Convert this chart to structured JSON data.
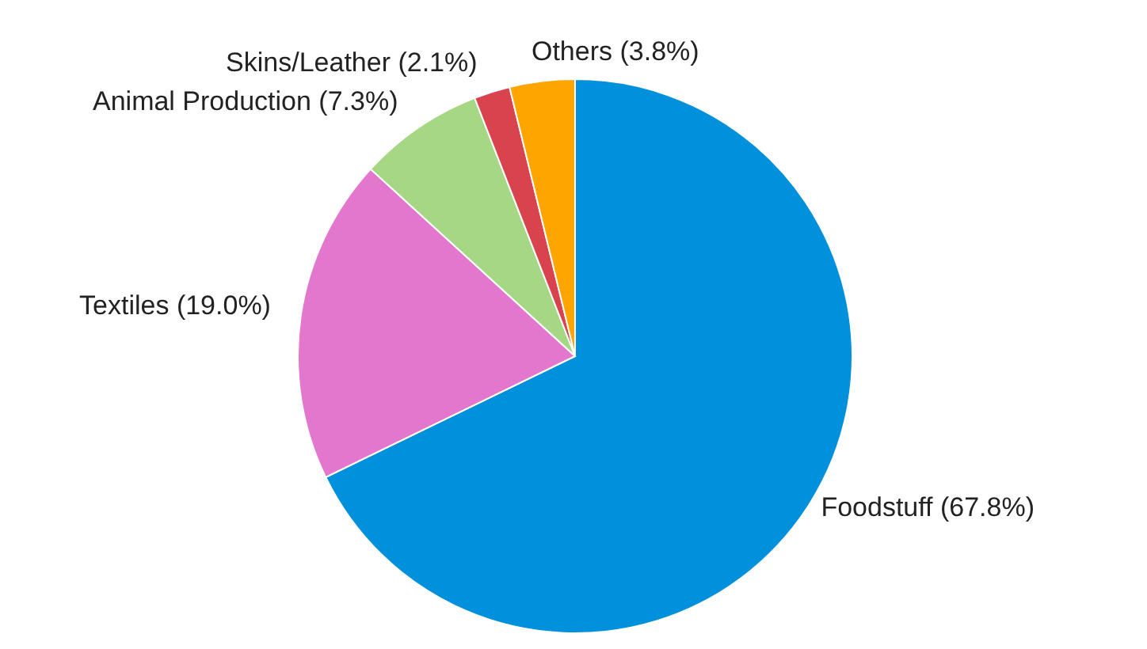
{
  "chart_data": {
    "type": "pie",
    "categories": [
      "Foodstuff",
      "Textiles",
      "Animal Production",
      "Skins/Leather",
      "Others"
    ],
    "values": [
      67.8,
      19.0,
      7.3,
      2.1,
      3.8
    ],
    "value_labels": [
      "(67.8%)",
      "(19.0%)",
      "(7.3%)",
      "(2.1%)",
      "(3.8%)"
    ],
    "colors": [
      "#0090dc",
      "#e377cd",
      "#a6d785",
      "#d9434e",
      "#ffa500"
    ],
    "legend": false
  }
}
